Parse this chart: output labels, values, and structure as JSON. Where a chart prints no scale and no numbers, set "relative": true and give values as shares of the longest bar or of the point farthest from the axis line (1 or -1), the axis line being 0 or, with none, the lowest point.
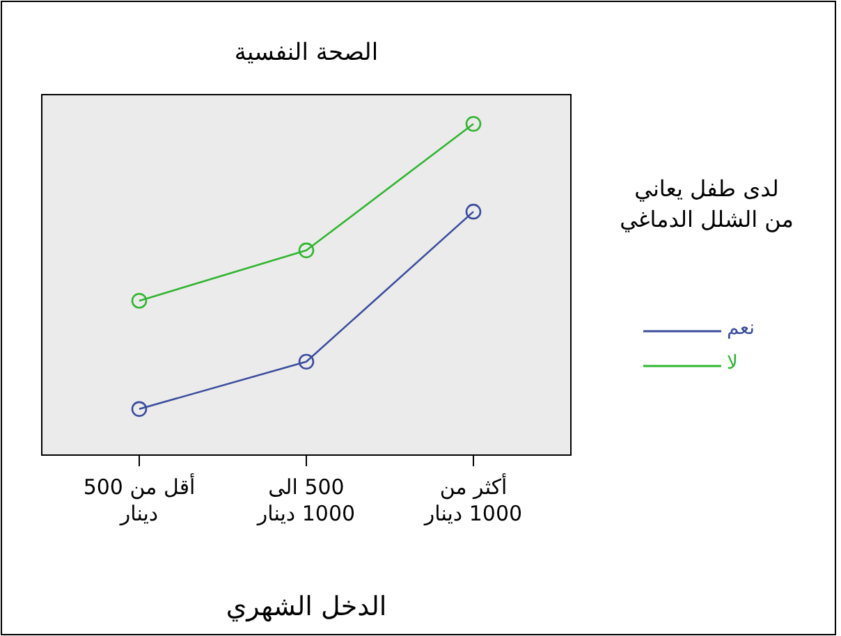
{
  "chart_data": {
    "type": "line",
    "title": "الصحة النفسية",
    "xlabel": "الدخل الشهري",
    "legend_title": "لدى طفل يعاني من الشلل الدماغي",
    "categories": [
      "أقل من 500 دينار",
      "500 الى 1000 دينار",
      "أكثر من 1000 دينار"
    ],
    "relative": true,
    "marker": "circle",
    "legend": "right",
    "series": [
      {
        "name": "نعم",
        "color": "#3a4c9c",
        "values": [
          0.139,
          0.282,
          0.735
        ]
      },
      {
        "name": "لا",
        "color": "#2fb52f",
        "values": [
          0.466,
          0.618,
          1
        ]
      }
    ]
  }
}
